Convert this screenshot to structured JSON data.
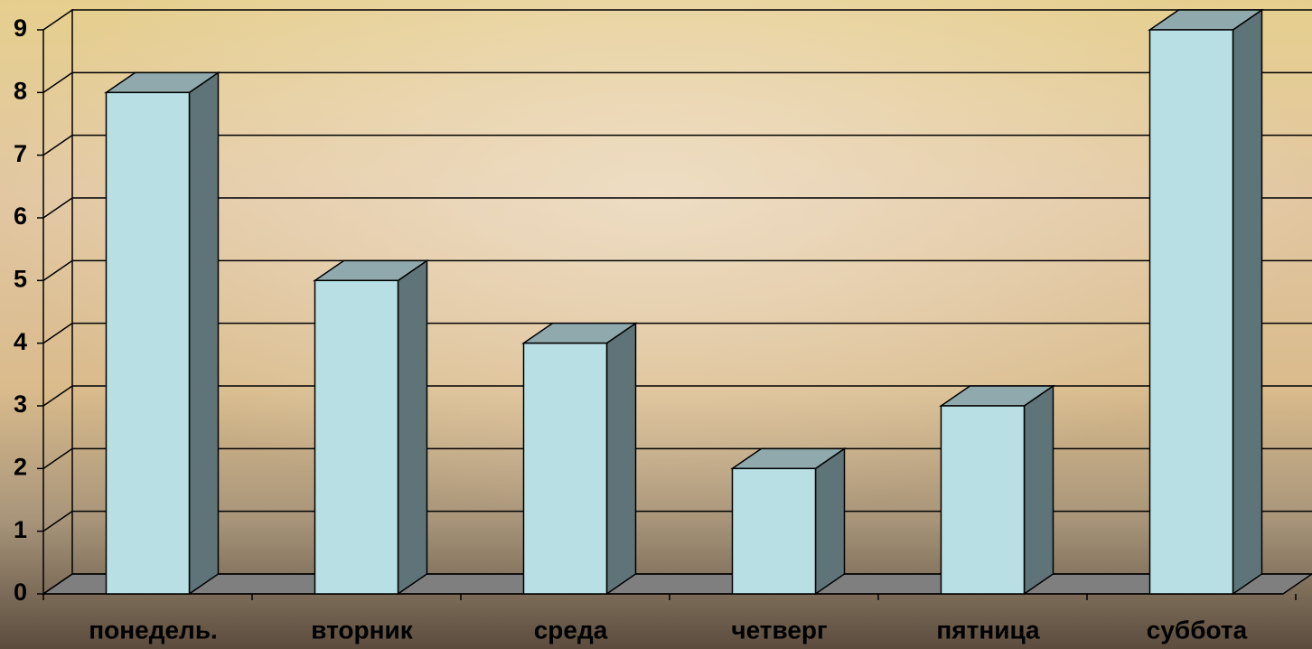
{
  "chart_data": {
    "type": "bar3d",
    "categories": [
      "понедель.",
      "вторник",
      "среда",
      "четверг",
      "пятница",
      "суббота"
    ],
    "values": [
      8,
      5,
      4,
      2,
      3,
      9
    ],
    "color": "#b8e0e4",
    "ylim": [
      0,
      9
    ],
    "yticks": [
      0,
      1,
      2,
      3,
      4,
      5,
      6,
      7,
      8,
      9
    ],
    "grid": true
  }
}
